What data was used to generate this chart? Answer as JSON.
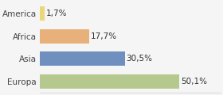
{
  "categories": [
    "America",
    "Africa",
    "Asia",
    "Europa"
  ],
  "values": [
    1.7,
    17.7,
    30.5,
    50.1
  ],
  "labels": [
    "1,7%",
    "17,7%",
    "30,5%",
    "50,1%"
  ],
  "bar_colors": [
    "#e8d87a",
    "#e8b07a",
    "#6f8fbf",
    "#b5c98e"
  ],
  "background_color": "#f5f5f5",
  "label_fontsize": 7.5,
  "tick_fontsize": 7.5
}
